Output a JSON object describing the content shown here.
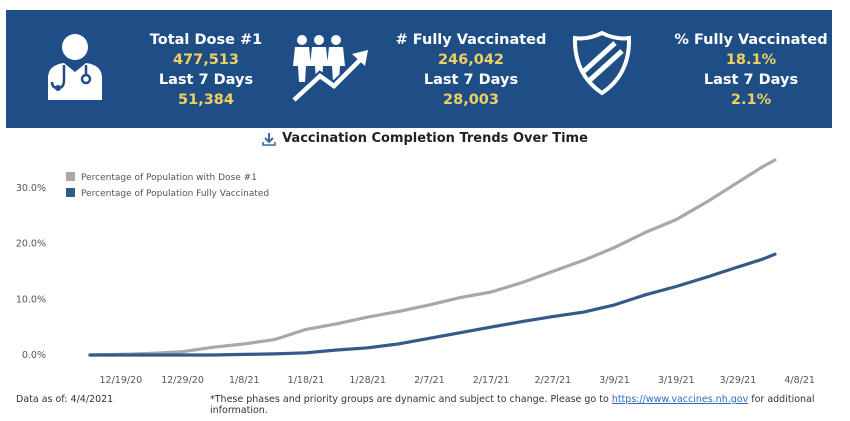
{
  "stats": {
    "dose1": {
      "label": "Total Dose #1",
      "value": "477,513",
      "last7_label": "Last 7 Days",
      "last7_value": "51,384"
    },
    "fully": {
      "label": "# Fully Vaccinated",
      "value": "246,042",
      "last7_label": "Last 7 Days",
      "last7_value": "28,003"
    },
    "pct": {
      "label": "% Fully Vaccinated",
      "value": "18.1%",
      "last7_label": "Last 7 Days",
      "last7_value": "2.1%"
    }
  },
  "icons": [
    "doctor-icon",
    "people-trend-icon",
    "shield-icon",
    "download-icon"
  ],
  "colors": {
    "banner": "#1f4e86",
    "accent": "#f0d060",
    "dose1_series": "#a8a8aa",
    "fully_series": "#34598b"
  },
  "chart_data": {
    "type": "line",
    "title": "Vaccination Completion Trends Over Time",
    "x_ticks": [
      "12/19/20",
      "12/29/20",
      "1/8/21",
      "1/18/21",
      "1/28/21",
      "2/7/21",
      "2/17/21",
      "2/27/21",
      "3/9/21",
      "3/19/21",
      "3/29/21",
      "4/8/21"
    ],
    "y_ticks": [
      "0.0%",
      "10.0%",
      "20.0%",
      "30.0%"
    ],
    "ylim": [
      0,
      35
    ],
    "xlim": [
      "12/14/20",
      "4/10/21"
    ],
    "legend_position": "top-left",
    "grid": false,
    "series": [
      {
        "name": "Percentage of Population with Dose #1",
        "color": "#a8a8aa",
        "points": [
          [
            "12/14/20",
            0.0
          ],
          [
            "12/19/20",
            0.1
          ],
          [
            "12/24/20",
            0.3
          ],
          [
            "12/29/20",
            0.6
          ],
          [
            "1/3/21",
            1.4
          ],
          [
            "1/8/21",
            2.0
          ],
          [
            "1/13/21",
            2.8
          ],
          [
            "1/18/21",
            4.6
          ],
          [
            "1/23/21",
            5.6
          ],
          [
            "1/28/21",
            6.8
          ],
          [
            "2/2/21",
            7.8
          ],
          [
            "2/7/21",
            9.0
          ],
          [
            "2/12/21",
            10.3
          ],
          [
            "2/17/21",
            11.3
          ],
          [
            "2/22/21",
            13.0
          ],
          [
            "2/27/21",
            15.0
          ],
          [
            "3/4/21",
            17.0
          ],
          [
            "3/9/21",
            19.3
          ],
          [
            "3/14/21",
            22.0
          ],
          [
            "3/19/21",
            24.3
          ],
          [
            "3/24/21",
            27.5
          ],
          [
            "3/29/21",
            31.0
          ],
          [
            "4/2/21",
            33.8
          ],
          [
            "4/4/21",
            35.0
          ]
        ]
      },
      {
        "name": "Percentage of Population Fully Vaccinated",
        "color": "#34598b",
        "points": [
          [
            "12/14/20",
            0.0
          ],
          [
            "12/24/20",
            0.0
          ],
          [
            "1/3/21",
            0.0
          ],
          [
            "1/8/21",
            0.1
          ],
          [
            "1/13/21",
            0.2
          ],
          [
            "1/18/21",
            0.4
          ],
          [
            "1/23/21",
            0.9
          ],
          [
            "1/28/21",
            1.3
          ],
          [
            "2/2/21",
            2.0
          ],
          [
            "2/7/21",
            3.0
          ],
          [
            "2/12/21",
            4.0
          ],
          [
            "2/17/21",
            5.0
          ],
          [
            "2/22/21",
            6.0
          ],
          [
            "2/27/21",
            6.9
          ],
          [
            "3/4/21",
            7.7
          ],
          [
            "3/9/21",
            9.0
          ],
          [
            "3/14/21",
            10.8
          ],
          [
            "3/19/21",
            12.3
          ],
          [
            "3/24/21",
            14.0
          ],
          [
            "3/29/21",
            15.8
          ],
          [
            "4/2/21",
            17.2
          ],
          [
            "4/4/21",
            18.1
          ]
        ]
      }
    ]
  },
  "footer": {
    "data_as_of": "Data as of: 4/4/2021",
    "note_before": "*These phases and priority groups are dynamic and subject to change. Please go to ",
    "link_text": "https://www.vaccines.nh.gov",
    "note_after": " for additional information."
  }
}
